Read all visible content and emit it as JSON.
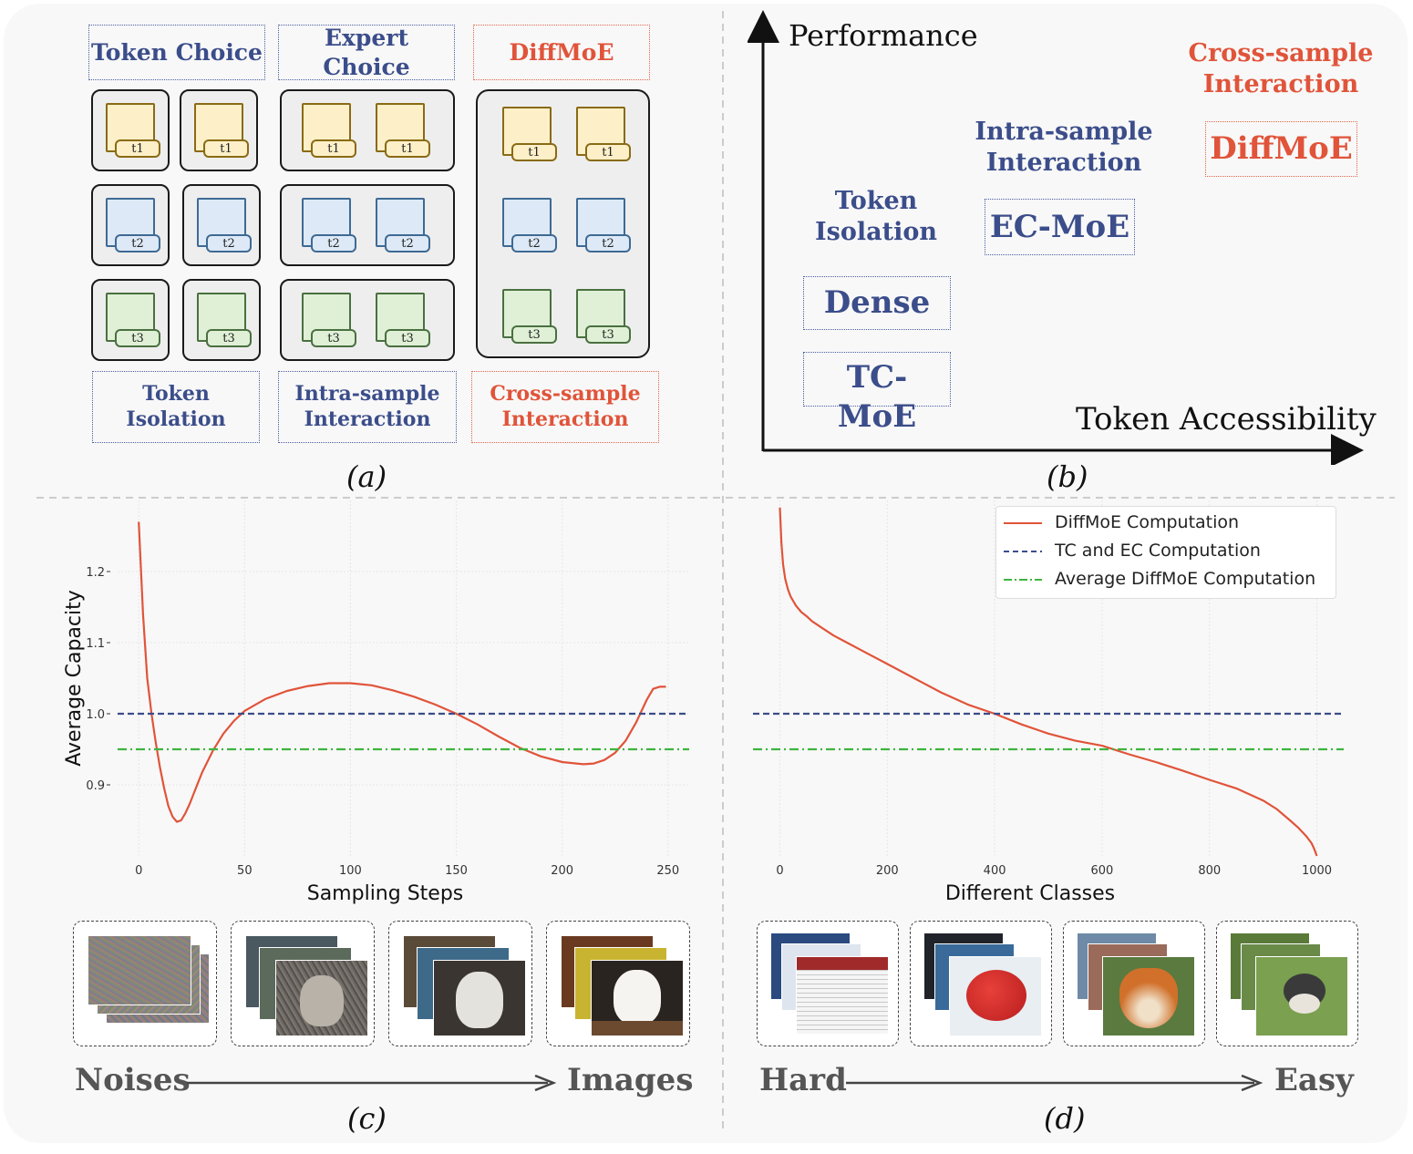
{
  "panel_a": {
    "top_labels": [
      "Token Choice",
      "Expert Choice",
      "DiffMoE"
    ],
    "token_tags": [
      "t1",
      "t2",
      "t3"
    ],
    "bottom_labels": [
      "Token\nIsolation",
      "Intra-sample\nInteraction",
      "Cross-sample\nInteraction"
    ],
    "caption": "(a)"
  },
  "panel_b": {
    "y_axis_label": "Performance",
    "x_axis_label": "Token Accessibility",
    "groups": [
      {
        "title": "Token\nIsolation",
        "items": [
          "Dense",
          "TC-\nMoE"
        ]
      },
      {
        "title": "Intra-sample\nInteraction",
        "items": [
          "EC-MoE"
        ]
      },
      {
        "title": "Cross-sample\nInteraction",
        "items": [
          "DiffMoE"
        ]
      }
    ],
    "caption": "(b)"
  },
  "panel_c": {
    "caption": "(c)",
    "arrow_left": "Noises",
    "arrow_right": "Images"
  },
  "panel_d": {
    "caption": "(d)",
    "arrow_left": "Hard",
    "arrow_right": "Easy"
  },
  "colors": {
    "blue": "#3b4d8a",
    "red": "#e0543a",
    "green": "#3fb43f"
  },
  "chart_data": [
    {
      "type": "line",
      "xlabel": "Sampling Steps",
      "ylabel": "Average Capacity",
      "xlim": [
        -10,
        260
      ],
      "ylim": [
        0.8,
        1.3
      ],
      "xticks": [
        "0",
        "50",
        "100",
        "150",
        "200",
        "250"
      ],
      "yticks": [
        "0.9",
        "1.0",
        "1.1",
        "1.2"
      ],
      "grid": true,
      "series": [
        {
          "style": "solid",
          "color": "#e0543a",
          "x": [
            0,
            2,
            4,
            6,
            8,
            10,
            12,
            14,
            16,
            18,
            20,
            22,
            24,
            26,
            28,
            30,
            35,
            40,
            45,
            50,
            60,
            70,
            80,
            90,
            100,
            110,
            120,
            130,
            140,
            150,
            160,
            170,
            180,
            190,
            200,
            210,
            215,
            220,
            225,
            230,
            235,
            240,
            243,
            246,
            249
          ],
          "y": [
            1.27,
            1.14,
            1.05,
            1.0,
            0.96,
            0.925,
            0.895,
            0.87,
            0.855,
            0.848,
            0.85,
            0.86,
            0.873,
            0.888,
            0.903,
            0.918,
            0.948,
            0.972,
            0.99,
            1.004,
            1.021,
            1.032,
            1.039,
            1.043,
            1.043,
            1.04,
            1.033,
            1.024,
            1.013,
            1.0,
            0.985,
            0.968,
            0.952,
            0.94,
            0.932,
            0.929,
            0.93,
            0.935,
            0.945,
            0.962,
            0.988,
            1.02,
            1.035,
            1.038,
            1.038
          ]
        },
        {
          "style": "dashed",
          "color": "#3b4d8a",
          "x": [
            -10,
            260
          ],
          "y": [
            1.0,
            1.0
          ]
        },
        {
          "style": "dashdot",
          "color": "#3fb43f",
          "x": [
            -10,
            260
          ],
          "y": [
            0.95,
            0.95
          ]
        }
      ]
    },
    {
      "type": "line",
      "xlabel": "Different Classes",
      "ylabel": "",
      "xlim": [
        -50,
        1050
      ],
      "ylim": [
        0.8,
        1.3
      ],
      "xticks": [
        "0",
        "200",
        "400",
        "600",
        "800",
        "1000"
      ],
      "yticks": [],
      "grid": true,
      "legend": "top-right",
      "series": [
        {
          "name": "DiffMoE Computation",
          "style": "solid",
          "color": "#e0543a",
          "x": [
            0,
            3,
            6,
            10,
            15,
            20,
            30,
            40,
            50,
            60,
            80,
            100,
            125,
            150,
            200,
            250,
            300,
            350,
            400,
            450,
            500,
            550,
            600,
            650,
            700,
            750,
            800,
            850,
            900,
            925,
            950,
            965,
            980,
            990,
            995,
            1000
          ],
          "y": [
            1.29,
            1.24,
            1.21,
            1.19,
            1.175,
            1.165,
            1.152,
            1.143,
            1.137,
            1.13,
            1.12,
            1.11,
            1.1,
            1.09,
            1.07,
            1.05,
            1.03,
            1.013,
            1.0,
            0.985,
            0.972,
            0.962,
            0.955,
            0.943,
            0.932,
            0.92,
            0.907,
            0.895,
            0.878,
            0.866,
            0.85,
            0.84,
            0.828,
            0.818,
            0.81,
            0.8
          ]
        },
        {
          "name": "TC and EC Computation",
          "style": "dashed",
          "color": "#3b4d8a",
          "x": [
            -50,
            1050
          ],
          "y": [
            1.0,
            1.0
          ]
        },
        {
          "name": "Average DiffMoE Computation",
          "style": "dashdot",
          "color": "#3fb43f",
          "x": [
            -50,
            1050
          ],
          "y": [
            0.95,
            0.95
          ]
        }
      ]
    }
  ]
}
